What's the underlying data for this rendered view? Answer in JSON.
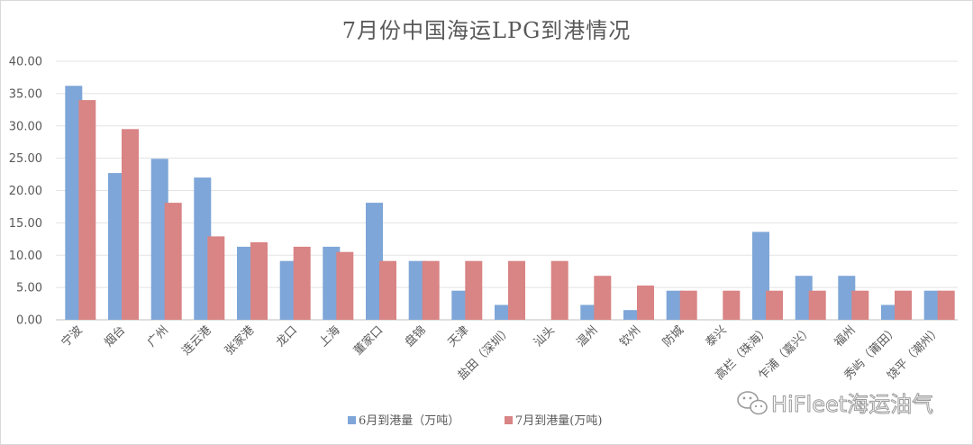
{
  "chart_data": {
    "type": "bar",
    "title": "7月份中国海运LPG到港情况",
    "xlabel": "",
    "ylabel": "",
    "ylim": [
      0,
      40
    ],
    "yticks": [
      "0.00",
      "5.00",
      "10.00",
      "15.00",
      "20.00",
      "25.00",
      "30.00",
      "35.00",
      "40.00"
    ],
    "grid": true,
    "legend_position": "bottom",
    "categories": [
      "宁波",
      "烟台",
      "广州",
      "连云港",
      "张家港",
      "龙口",
      "上海",
      "董家口",
      "盘锦",
      "天津",
      "盐田（深圳）",
      "汕头",
      "温州",
      "钦州",
      "防城",
      "泰兴",
      "高栏（珠海）",
      "乍浦（嘉兴）",
      "福州",
      "秀屿（莆田）",
      "饶平（潮州）"
    ],
    "series": [
      {
        "name": "6月到港量（万吨）",
        "color": "#7ea6d8",
        "values": [
          36.2,
          22.7,
          24.9,
          22.0,
          11.3,
          9.1,
          11.3,
          18.1,
          9.1,
          4.5,
          2.3,
          0,
          2.3,
          1.5,
          4.5,
          0,
          13.6,
          6.8,
          6.8,
          2.3,
          4.5
        ]
      },
      {
        "name": "7月到港量(万吨)",
        "color": "#d98485",
        "values": [
          34.0,
          29.5,
          18.1,
          12.9,
          12.0,
          11.3,
          10.5,
          9.1,
          9.1,
          9.1,
          9.1,
          9.1,
          6.8,
          5.3,
          4.5,
          4.5,
          4.5,
          4.5,
          4.5,
          4.5,
          4.5
        ]
      }
    ]
  },
  "watermark": {
    "text": "HiFleet海运油气",
    "icon": "wechat-icon"
  }
}
